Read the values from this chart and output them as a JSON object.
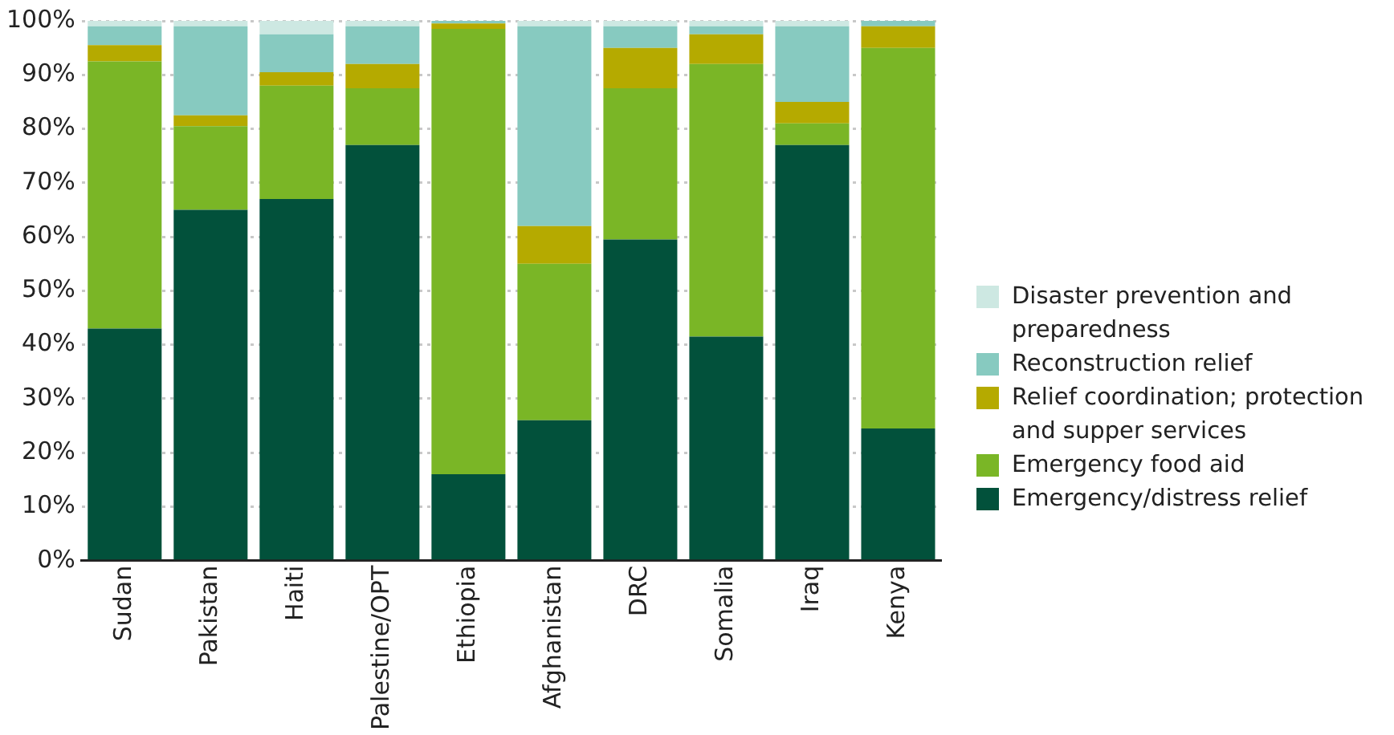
{
  "chart_data": {
    "type": "bar",
    "stacked": true,
    "categories": [
      "Sudan",
      "Pakistan",
      "Haiti",
      "Palestine/OPT",
      "Ethiopia",
      "Afghanistan",
      "DRC",
      "Somalia",
      "Iraq",
      "Kenya"
    ],
    "series": [
      {
        "name": "Emergency/distress relief",
        "color": "#02513b",
        "values": [
          43,
          65,
          67,
          77,
          16,
          26,
          59.5,
          41.5,
          77,
          24.5
        ]
      },
      {
        "name": "Emergency food aid",
        "color": "#7ab626",
        "values": [
          49.5,
          15.5,
          21,
          10.5,
          82.5,
          29,
          28,
          50.5,
          4,
          70.5
        ]
      },
      {
        "name": "Relief coordination; protection and supper services",
        "color": "#b5aa00",
        "values": [
          3,
          2,
          2.5,
          4.5,
          1,
          7,
          7.5,
          5.5,
          4,
          4
        ]
      },
      {
        "name": "Reconstruction relief",
        "color": "#87cac0",
        "values": [
          3.5,
          16.5,
          7,
          7,
          0.5,
          37,
          4,
          1.5,
          14,
          1
        ]
      },
      {
        "name": "Disaster prevention and preparedness",
        "color": "#cde8e2",
        "values": [
          1,
          1,
          2.5,
          1,
          0,
          1,
          1,
          1,
          1,
          0
        ]
      }
    ],
    "ylim": [
      0,
      100
    ],
    "yticks": [
      {
        "value": 0,
        "label": "0%"
      },
      {
        "value": 10,
        "label": "10%"
      },
      {
        "value": 20,
        "label": "20%"
      },
      {
        "value": 30,
        "label": "30%"
      },
      {
        "value": 40,
        "label": "40%"
      },
      {
        "value": 50,
        "label": "50%"
      },
      {
        "value": 60,
        "label": "60%"
      },
      {
        "value": 70,
        "label": "70%"
      },
      {
        "value": 80,
        "label": "80%"
      },
      {
        "value": 90,
        "label": "90%"
      },
      {
        "value": 100,
        "label": "100%"
      }
    ],
    "grid": "y",
    "legend": "right"
  }
}
